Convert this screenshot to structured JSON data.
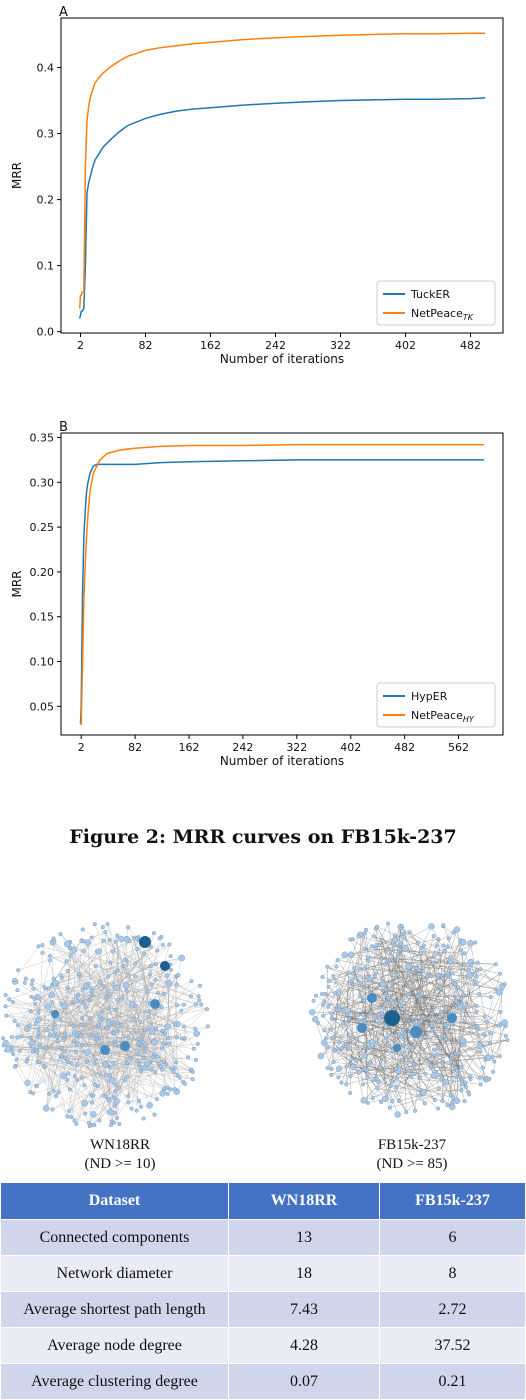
{
  "chart_data": [
    {
      "type": "line",
      "panel_label": "A",
      "xlabel": "Number of iterations",
      "ylabel": "MRR",
      "xticks": [
        2,
        82,
        162,
        242,
        322,
        402,
        482
      ],
      "yticks": [
        0.0,
        0.1,
        0.2,
        0.3,
        0.4
      ],
      "xlim": [
        -22,
        522
      ],
      "ylim": [
        -0.002,
        0.475
      ],
      "legend_placement": "lower-right",
      "series": [
        {
          "name": "TuckER",
          "color": "#1f77b4",
          "x": [
            1,
            2,
            3,
            4,
            6,
            8,
            10,
            12,
            14,
            16,
            18,
            20,
            25,
            30,
            40,
            50,
            60,
            70,
            82,
            100,
            120,
            140,
            162,
            200,
            242,
            280,
            322,
            360,
            402,
            440,
            482,
            500
          ],
          "y": [
            0.02,
            0.025,
            0.031,
            0.031,
            0.035,
            0.1,
            0.21,
            0.225,
            0.235,
            0.245,
            0.253,
            0.26,
            0.27,
            0.28,
            0.292,
            0.303,
            0.312,
            0.317,
            0.323,
            0.329,
            0.334,
            0.337,
            0.339,
            0.343,
            0.346,
            0.348,
            0.35,
            0.351,
            0.352,
            0.352,
            0.353,
            0.354
          ]
        },
        {
          "name": "NetPeace",
          "name_sub": "TK",
          "color": "#ff7f0e",
          "x": [
            1,
            2,
            3,
            4,
            6,
            8,
            10,
            12,
            14,
            16,
            18,
            20,
            25,
            30,
            40,
            50,
            60,
            70,
            82,
            100,
            120,
            140,
            162,
            200,
            242,
            280,
            322,
            360,
            402,
            440,
            482,
            500
          ],
          "y": [
            0.035,
            0.055,
            0.055,
            0.06,
            0.06,
            0.25,
            0.32,
            0.34,
            0.355,
            0.362,
            0.37,
            0.377,
            0.385,
            0.392,
            0.402,
            0.41,
            0.417,
            0.421,
            0.426,
            0.43,
            0.433,
            0.436,
            0.438,
            0.442,
            0.445,
            0.447,
            0.449,
            0.45,
            0.451,
            0.451,
            0.452,
            0.452
          ]
        }
      ]
    },
    {
      "type": "line",
      "panel_label": "B",
      "xlabel": "Number of iterations",
      "ylabel": "MRR",
      "xticks": [
        2,
        82,
        162,
        242,
        322,
        402,
        482,
        562
      ],
      "yticks": [
        0.05,
        0.1,
        0.15,
        0.2,
        0.25,
        0.3,
        0.35
      ],
      "xlim": [
        -28,
        628
      ],
      "ylim": [
        0.018,
        0.355
      ],
      "legend_placement": "lower-right",
      "series": [
        {
          "name": "HypER",
          "color": "#1f77b4",
          "x": [
            1,
            2,
            4,
            6,
            8,
            10,
            12,
            15,
            20,
            25,
            30,
            40,
            60,
            82,
            120,
            162,
            242,
            322,
            402,
            482,
            562,
            600
          ],
          "y": [
            0.03,
            0.05,
            0.18,
            0.24,
            0.27,
            0.29,
            0.3,
            0.31,
            0.318,
            0.32,
            0.32,
            0.32,
            0.32,
            0.32,
            0.322,
            0.323,
            0.324,
            0.325,
            0.325,
            0.325,
            0.325,
            0.325
          ]
        },
        {
          "name": "NetPeace",
          "name_sub": "HY",
          "color": "#ff7f0e",
          "x": [
            1,
            2,
            4,
            6,
            8,
            10,
            12,
            15,
            20,
            25,
            30,
            40,
            60,
            82,
            120,
            162,
            242,
            322,
            402,
            482,
            562,
            600
          ],
          "y": [
            0.03,
            0.03,
            0.1,
            0.17,
            0.21,
            0.24,
            0.265,
            0.29,
            0.31,
            0.318,
            0.325,
            0.332,
            0.336,
            0.338,
            0.34,
            0.341,
            0.341,
            0.342,
            0.342,
            0.342,
            0.342,
            0.342
          ]
        }
      ]
    }
  ],
  "caption": "Figure 2: MRR curves on FB15k-237",
  "graphs": {
    "left": {
      "name": "WN18RR",
      "note": "(ND >= 10)"
    },
    "right": {
      "name": "FB15k-237",
      "note": "(ND >= 85)"
    },
    "node_color_light": "#a9c9e8",
    "node_color_dark": "#1f5f8f",
    "edge_color": "#555555"
  },
  "table": {
    "header": [
      "Dataset",
      "WN18RR",
      "FB15k-237"
    ],
    "rows": [
      [
        "Connected components",
        "13",
        "6"
      ],
      [
        "Network diameter",
        "18",
        "8"
      ],
      [
        "Average shortest path length",
        "7.43",
        "2.72"
      ],
      [
        "Average node degree",
        "4.28",
        "37.52"
      ],
      [
        "Average clustering degree",
        "0.07",
        "0.21"
      ]
    ]
  }
}
